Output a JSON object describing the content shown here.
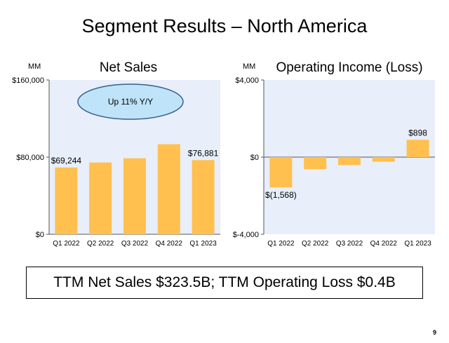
{
  "slide": {
    "title": "Segment Results – North America",
    "summary": "TTM Net Sales $323.5B; TTM Operating Loss $0.4B",
    "page_number": "9"
  },
  "colors": {
    "bar": "#FFC04F",
    "plot_bg": "#E8EEFA",
    "callout_fill": "#BFE3F8",
    "callout_stroke": "#3A5F8A"
  },
  "chart_data": [
    {
      "type": "bar",
      "title": "Net Sales",
      "unit_label": "MM",
      "categories": [
        "Q1 2022",
        "Q2 2022",
        "Q3 2022",
        "Q4 2022",
        "Q1 2023"
      ],
      "values": [
        69244,
        74430,
        78843,
        93363,
        76881
      ],
      "ylim": [
        0,
        160000
      ],
      "yticks": [
        {
          "value": 0,
          "label": "$0"
        },
        {
          "value": 80000,
          "label": "$80,000"
        },
        {
          "value": 160000,
          "label": "$160,000"
        }
      ],
      "data_labels": [
        {
          "index": 0,
          "text": "$69,244"
        },
        {
          "index": 4,
          "text": "$76,881"
        }
      ],
      "annotation": "Up 11% Y/Y",
      "grid": false
    },
    {
      "type": "bar",
      "title": "Operating Income (Loss)",
      "unit_label": "MM",
      "categories": [
        "Q1 2022",
        "Q2 2022",
        "Q3 2022",
        "Q4 2022",
        "Q1 2023"
      ],
      "values": [
        -1568,
        -627,
        -412,
        -240,
        898
      ],
      "ylim": [
        -4000,
        4000
      ],
      "yticks": [
        {
          "value": -4000,
          "label": "$-4,000"
        },
        {
          "value": 0,
          "label": "$0"
        },
        {
          "value": 4000,
          "label": "$4,000"
        }
      ],
      "data_labels": [
        {
          "index": 0,
          "text": "$(1,568)"
        },
        {
          "index": 4,
          "text": "$898"
        }
      ],
      "grid": false
    }
  ]
}
